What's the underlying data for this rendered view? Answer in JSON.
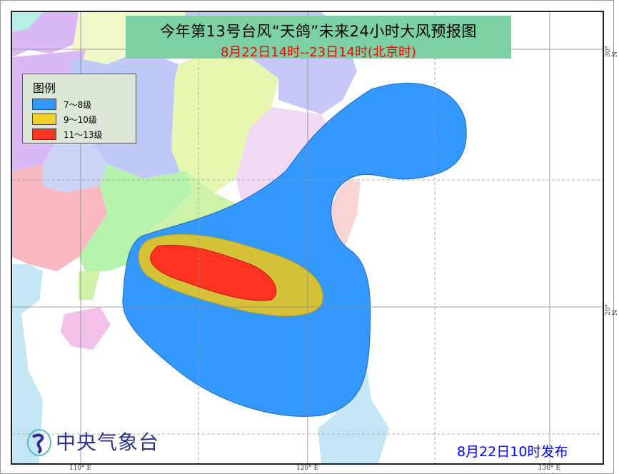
{
  "title": "今年第13号台风“天鸽”未来24小时大风预报图",
  "subtitle": "8月22日14时--23日14时(北京时)",
  "legend": {
    "title": "图例",
    "items": [
      {
        "label": "7～8级",
        "color": "#3399ff"
      },
      {
        "label": "9～10级",
        "color": "#f5d22b"
      },
      {
        "label": "11～13级",
        "color": "#ff3322"
      }
    ]
  },
  "axes": {
    "lon_labels": [
      "110° E",
      "120° E",
      "130° E"
    ],
    "lat_labels": [
      "30° N",
      "20° N"
    ]
  },
  "logo": {
    "text": "中央气象台"
  },
  "issue_time": "8月22日10时发布",
  "colors": {
    "wind_7_8": "#3399ff",
    "wind_9_10": "#d6c238",
    "wind_11_13": "#ff3322",
    "title_bg": "#7bd1a3",
    "sea": "#ffffff"
  }
}
